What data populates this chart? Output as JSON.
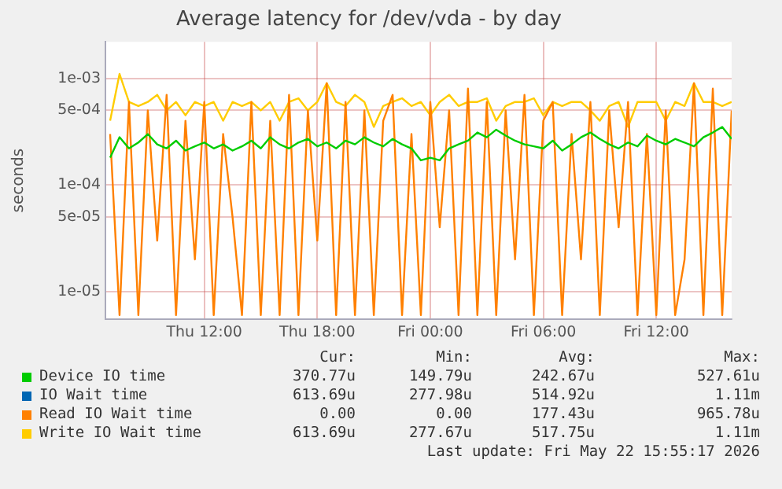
{
  "chart_data": {
    "type": "line",
    "title": "Average latency for /dev/vda - by day",
    "ylabel": "seconds",
    "log": "y",
    "grid": true,
    "legend": "bottom",
    "marker": "none",
    "line_style": "solid",
    "x": [
      "2026-05-21T07:00",
      "2026-05-21T07:30",
      "2026-05-21T08:00",
      "2026-05-21T08:30",
      "2026-05-21T09:00",
      "2026-05-21T09:30",
      "2026-05-21T10:00",
      "2026-05-21T10:30",
      "2026-05-21T11:00",
      "2026-05-21T11:30",
      "2026-05-21T12:00",
      "2026-05-21T12:30",
      "2026-05-21T13:00",
      "2026-05-21T13:30",
      "2026-05-21T14:00",
      "2026-05-21T14:30",
      "2026-05-21T15:00",
      "2026-05-21T15:30",
      "2026-05-21T16:00",
      "2026-05-21T16:30",
      "2026-05-21T17:00",
      "2026-05-21T17:30",
      "2026-05-21T18:00",
      "2026-05-21T18:30",
      "2026-05-21T19:00",
      "2026-05-21T19:30",
      "2026-05-21T20:00",
      "2026-05-21T20:30",
      "2026-05-21T21:00",
      "2026-05-21T21:30",
      "2026-05-21T22:00",
      "2026-05-21T22:30",
      "2026-05-21T23:00",
      "2026-05-21T23:30",
      "2026-05-22T00:00",
      "2026-05-22T00:30",
      "2026-05-22T01:00",
      "2026-05-22T01:30",
      "2026-05-22T02:00",
      "2026-05-22T02:30",
      "2026-05-22T03:00",
      "2026-05-22T03:30",
      "2026-05-22T04:00",
      "2026-05-22T04:30",
      "2026-05-22T05:00",
      "2026-05-22T05:30",
      "2026-05-22T06:00",
      "2026-05-22T06:30",
      "2026-05-22T07:00",
      "2026-05-22T07:30",
      "2026-05-22T08:00",
      "2026-05-22T08:30",
      "2026-05-22T09:00",
      "2026-05-22T09:30",
      "2026-05-22T10:00",
      "2026-05-22T10:30",
      "2026-05-22T11:00",
      "2026-05-22T11:30",
      "2026-05-22T12:00",
      "2026-05-22T12:30",
      "2026-05-22T13:00",
      "2026-05-22T13:30",
      "2026-05-22T14:00",
      "2026-05-22T14:30",
      "2026-05-22T15:00",
      "2026-05-22T15:30",
      "2026-05-22T16:00"
    ],
    "xlim": [
      "2026-05-21T06:45",
      "2026-05-22T16:00"
    ],
    "xticks": [
      {
        "value": "2026-05-21T12:00",
        "label": "Thu 12:00"
      },
      {
        "value": "2026-05-21T18:00",
        "label": "Thu 18:00"
      },
      {
        "value": "2026-05-22T00:00",
        "label": "Fri 00:00"
      },
      {
        "value": "2026-05-22T06:00",
        "label": "Fri 06:00"
      },
      {
        "value": "2026-05-22T12:00",
        "label": "Fri 12:00"
      }
    ],
    "ylim": [
      5.5e-06,
      0.0022
    ],
    "yticks": [
      {
        "value": 1e-05,
        "label": "1e-05"
      },
      {
        "value": 5e-05,
        "label": "5e-05"
      },
      {
        "value": 0.0001,
        "label": "1e-04"
      },
      {
        "value": 0.0005,
        "label": "5e-04"
      },
      {
        "value": 0.001,
        "label": "1e-03"
      }
    ],
    "series": [
      {
        "name": "Device IO time",
        "color": "#00cc00",
        "values": [
          0.00018,
          0.00028,
          0.00022,
          0.00025,
          0.0003,
          0.00024,
          0.00022,
          0.00026,
          0.00021,
          0.00023,
          0.00025,
          0.00022,
          0.00024,
          0.00021,
          0.00023,
          0.00026,
          0.00022,
          0.00028,
          0.00024,
          0.00022,
          0.00025,
          0.00027,
          0.00023,
          0.00025,
          0.00022,
          0.00026,
          0.00024,
          0.00028,
          0.00025,
          0.00023,
          0.00027,
          0.00024,
          0.00022,
          0.00017,
          0.00018,
          0.00017,
          0.00022,
          0.00024,
          0.00026,
          0.00031,
          0.00028,
          0.00033,
          0.00029,
          0.00026,
          0.00024,
          0.00023,
          0.00022,
          0.00026,
          0.00021,
          0.00024,
          0.00028,
          0.00031,
          0.00027,
          0.00024,
          0.00022,
          0.00025,
          0.00023,
          0.00029,
          0.00026,
          0.00024,
          0.00027,
          0.00025,
          0.00023,
          0.00028,
          0.00031,
          0.00035,
          0.00027
        ]
      },
      {
        "name": "IO Wait time",
        "color": "#0066b3",
        "values": [
          null,
          null,
          null,
          null,
          null,
          null,
          null,
          null,
          null,
          null,
          null,
          null,
          null,
          null,
          null,
          null,
          null,
          null,
          null,
          null,
          null,
          null,
          null,
          null,
          null,
          null,
          null,
          null,
          null,
          null,
          null,
          null,
          null,
          null,
          null,
          null,
          null,
          null,
          null,
          null,
          null,
          null,
          null,
          null,
          null,
          null,
          null,
          null,
          null,
          null,
          null,
          null,
          null,
          null,
          null,
          null,
          null,
          null,
          null,
          null,
          null,
          null,
          null,
          null,
          null,
          null,
          null
        ]
      },
      {
        "name": "Read IO Wait time",
        "color": "#ff8000",
        "values": [
          0.0003,
          6e-06,
          0.0006,
          6e-06,
          0.0005,
          3e-05,
          0.0007,
          6e-06,
          0.0004,
          2e-05,
          0.0006,
          6e-06,
          0.0003,
          5e-05,
          6e-06,
          0.0006,
          6e-06,
          0.0004,
          6e-06,
          0.0007,
          6e-06,
          0.0005,
          3e-05,
          0.0009,
          6e-06,
          0.0006,
          6e-06,
          0.0005,
          6e-06,
          0.0004,
          0.0007,
          6e-06,
          0.0003,
          6e-06,
          0.0006,
          4e-05,
          0.0005,
          6e-06,
          0.0008,
          6e-06,
          0.0006,
          6e-06,
          0.0005,
          2e-05,
          0.0007,
          6e-06,
          0.0004,
          0.0006,
          6e-06,
          0.0003,
          2e-05,
          0.0006,
          6e-06,
          0.0005,
          4e-05,
          0.0006,
          6e-06,
          0.0003,
          6e-06,
          0.0005,
          6e-06,
          2e-05,
          0.0009,
          6e-06,
          0.0008,
          6e-06,
          0.0005
        ]
      },
      {
        "name": "Write IO Wait time",
        "color": "#ffcc00",
        "values": [
          0.0004,
          0.0011,
          0.0006,
          0.00055,
          0.0006,
          0.0007,
          0.0005,
          0.0006,
          0.00045,
          0.0006,
          0.00055,
          0.0006,
          0.0004,
          0.0006,
          0.00055,
          0.0006,
          0.0005,
          0.0006,
          0.0004,
          0.0006,
          0.00065,
          0.0005,
          0.0006,
          0.0009,
          0.0006,
          0.00055,
          0.0007,
          0.0006,
          0.00035,
          0.00055,
          0.0006,
          0.00065,
          0.00055,
          0.0006,
          0.00045,
          0.0006,
          0.0007,
          0.00055,
          0.0006,
          0.0006,
          0.00065,
          0.0004,
          0.00055,
          0.0006,
          0.0006,
          0.00065,
          0.00045,
          0.0006,
          0.00055,
          0.0006,
          0.0006,
          0.0005,
          0.0004,
          0.00055,
          0.0006,
          0.00035,
          0.0006,
          0.0006,
          0.0006,
          0.0004,
          0.0006,
          0.00055,
          0.0009,
          0.0006,
          0.0006,
          0.00055,
          0.0006
        ]
      }
    ],
    "annotations": [
      "Cur:",
      "Min:",
      "Avg:",
      "Max:",
      "370.77u",
      "149.79u",
      "242.67u",
      "527.61u",
      "613.69u",
      "277.98u",
      "514.92u",
      "1.11m",
      "0.00",
      "0.00",
      "177.43u",
      "965.78u",
      "613.69u",
      "277.67u",
      "517.75u",
      "1.11m",
      "Last update: Fri May 22 15:55:17 2026"
    ]
  }
}
